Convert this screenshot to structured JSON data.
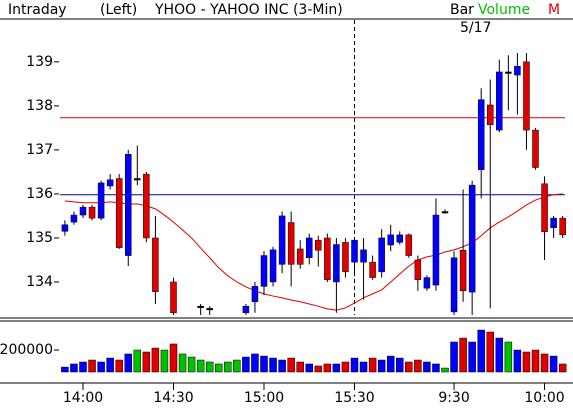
{
  "chart_data": {
    "type": "candlestick",
    "header": {
      "left": "Intraday",
      "axis": "(Left)",
      "title": "YHOO - YAHOO INC (3-Min)",
      "bar": "Bar",
      "date": "5/17",
      "volume": "Volume",
      "ma": "M"
    },
    "categories": [
      null,
      null,
      "14:00",
      null,
      null,
      null,
      null,
      null,
      null,
      null,
      null,
      null,
      "14:30",
      null,
      null,
      null,
      null,
      null,
      null,
      null,
      null,
      null,
      "15:00",
      null,
      null,
      null,
      null,
      null,
      null,
      null,
      null,
      null,
      "15:30",
      null,
      null,
      null,
      null,
      null,
      null,
      null,
      null,
      null,
      null,
      "9:30",
      null,
      null,
      null,
      null,
      null,
      null,
      null,
      null,
      null,
      "10:00",
      null,
      null
    ],
    "open": [
      135.15,
      135.36,
      135.52,
      135.7,
      135.45,
      136.18,
      136.35,
      134.6,
      136.35,
      136.45,
      135,
      null,
      134,
      null,
      null,
      133.45,
      133.4,
      null,
      null,
      null,
      133.3,
      133.55,
      133.9,
      134,
      134.4,
      135.35,
      134.75,
      134.55,
      134.95,
      135,
      134,
      134.9,
      134.45,
      134.45,
      134.45,
      134.23,
      134.84,
      134.9,
      135.07,
      134.5,
      133.86,
      133.93,
      135.6,
      133.32,
      134.72,
      133.77,
      136.55,
      138.02,
      137.45,
      138.77,
      138.7,
      139,
      137.45,
      136.23,
      135.23,
      135.45
    ],
    "high": [
      135.4,
      135.6,
      135.75,
      135.75,
      136.3,
      136.45,
      136.45,
      137,
      137.1,
      136.5,
      135.5,
      null,
      134.1,
      null,
      null,
      133.5,
      133.45,
      null,
      null,
      null,
      133.5,
      134,
      134.7,
      134.8,
      135.6,
      135.6,
      134.95,
      135.1,
      135.05,
      135.1,
      135,
      135,
      135,
      135,
      134.6,
      135.2,
      135.3,
      135.15,
      135.1,
      134.6,
      134.15,
      135.9,
      135.65,
      134.7,
      136.1,
      136.3,
      138.4,
      138.6,
      139.05,
      139.15,
      139.2,
      139.2,
      137.5,
      136.4,
      135.5,
      135.5
    ],
    "low": [
      135.05,
      135.3,
      135.45,
      135.4,
      135.4,
      136.1,
      134.75,
      134.36,
      136.2,
      134.9,
      133.5,
      null,
      133.25,
      null,
      null,
      133.25,
      133.25,
      null,
      null,
      null,
      133.25,
      133.3,
      133.7,
      133.9,
      134.2,
      133.9,
      134.3,
      134.4,
      134.35,
      134,
      133.3,
      134.1,
      134.2,
      133.6,
      134.05,
      134.1,
      134.7,
      134.85,
      134.55,
      133.8,
      133.8,
      133.8,
      135.55,
      133.25,
      133.55,
      133.25,
      135.9,
      133.4,
      137.4,
      137.9,
      137.8,
      137,
      136.55,
      134.5,
      135,
      135
    ],
    "close": [
      135.3,
      135.52,
      135.7,
      135.45,
      136.25,
      136.32,
      134.78,
      136.9,
      136.35,
      135,
      133.78,
      null,
      133.3,
      null,
      null,
      133.45,
      133.4,
      null,
      null,
      null,
      133.45,
      133.9,
      134.6,
      134.73,
      135.5,
      134.4,
      134.4,
      135,
      134.72,
      134.05,
      134.85,
      134.23,
      134.95,
      134.73,
      134.1,
      135,
      135.07,
      135.07,
      134.6,
      134.05,
      134.1,
      135.52,
      135.6,
      134.55,
      133.8,
      136.2,
      138.14,
      137.57,
      138.77,
      138.77,
      138.9,
      137.45,
      136.6,
      135.14,
      135.45,
      135.07
    ],
    "up_color": "#0000ff",
    "down_color": "#e00000",
    "flat_color": "#00c000",
    "ma": {
      "color": "#e00000",
      "values": [
        135.84,
        135.82,
        135.8,
        135.8,
        135.8,
        135.82,
        135.8,
        135.77,
        135.77,
        135.73,
        135.66,
        135.52,
        135.36,
        135.18,
        135,
        134.77,
        134.55,
        134.32,
        134.14,
        134,
        133.89,
        133.8,
        133.73,
        133.68,
        133.64,
        133.59,
        133.55,
        133.5,
        133.45,
        133.39,
        133.36,
        133.41,
        133.52,
        133.64,
        133.73,
        133.82,
        134,
        134.18,
        134.36,
        134.5,
        134.57,
        134.61,
        134.68,
        134.73,
        134.8,
        134.89,
        135.05,
        135.23,
        135.36,
        135.48,
        135.61,
        135.75,
        135.86,
        135.93,
        135.98,
        136
      ]
    },
    "hlines": [
      {
        "value": 137.73,
        "color": "#e00000"
      },
      {
        "value": 135.98,
        "color": "#0000a0"
      }
    ],
    "ylim": [
      133.25,
      139.95
    ],
    "yticks": [
      134,
      135,
      136,
      137,
      138,
      139
    ],
    "volume": [
      45000,
      73000,
      91000,
      109000,
      91000,
      127000,
      109000,
      164000,
      200000,
      182000,
      218000,
      200000,
      255000,
      164000,
      136000,
      109000,
      91000,
      73000,
      91000,
      109000,
      136000,
      164000,
      145000,
      127000,
      109000,
      127000,
      91000,
      73000,
      55000,
      73000,
      73000,
      91000,
      127000,
      91000,
      127000,
      109000,
      145000,
      127000,
      91000,
      109000,
      91000,
      73000,
      36000,
      273000,
      309000,
      273000,
      382000,
      364000,
      309000,
      273000,
      200000,
      182000,
      200000,
      164000,
      145000,
      73000
    ],
    "volume_ylim": [
      0,
      455000
    ],
    "volume_yticks": [
      200000
    ]
  }
}
